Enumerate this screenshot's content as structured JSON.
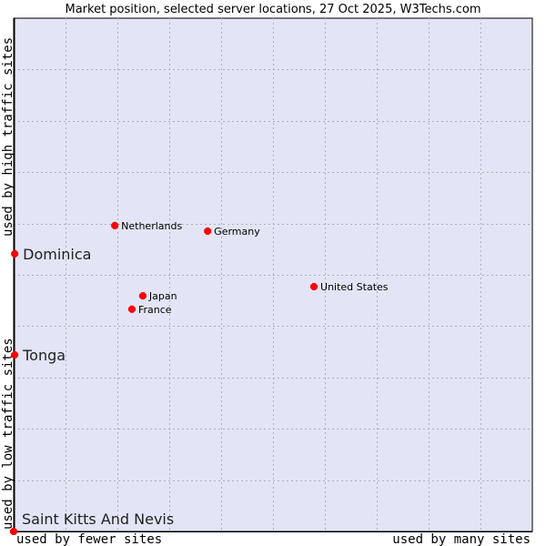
{
  "chart_data": {
    "type": "scatter",
    "title": "Market position, selected server locations, 27 Oct 2025, W3Techs.com",
    "xlabel_low": "used by fewer sites",
    "xlabel_high": "used by many sites",
    "ylabel_low": "used by low traffic sites",
    "ylabel_high": "used by high traffic sites",
    "xlim": [
      0,
      100
    ],
    "ylim": [
      0,
      100
    ],
    "grid": true,
    "colors": {
      "background": "#e3e5f7",
      "point": "#ff0000",
      "grid": "#b0b0b0"
    },
    "points": [
      {
        "label": "Netherlands",
        "x": 19.5,
        "y": 59.6,
        "highlight": false
      },
      {
        "label": "Germany",
        "x": 37.4,
        "y": 58.5,
        "highlight": false
      },
      {
        "label": "United States",
        "x": 57.9,
        "y": 47.7,
        "highlight": false
      },
      {
        "label": "Japan",
        "x": 24.9,
        "y": 45.9,
        "highlight": false
      },
      {
        "label": "France",
        "x": 22.8,
        "y": 43.3,
        "highlight": false
      },
      {
        "label": "Dominica",
        "x": 0.2,
        "y": 54.1,
        "highlight": true
      },
      {
        "label": "Tonga",
        "x": 0.2,
        "y": 34.4,
        "highlight": true
      },
      {
        "label": "Saint Kitts And Nevis",
        "x": 0,
        "y": 0,
        "highlight": true
      }
    ]
  }
}
